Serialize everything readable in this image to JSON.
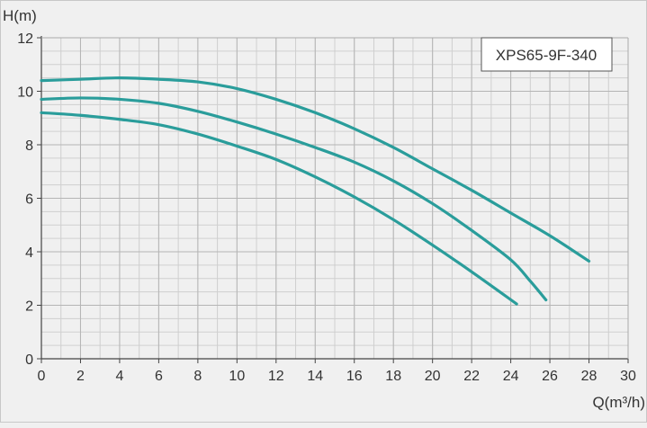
{
  "chart_data": {
    "type": "line",
    "title": "",
    "legend_box_label": "XPS65-9F-340",
    "legend_position": "top-right",
    "xlabel": "Q(m³/h)",
    "ylabel": "H(m)",
    "xlim": [
      0,
      30
    ],
    "ylim": [
      0,
      12
    ],
    "x_ticks": [
      0,
      2,
      4,
      6,
      8,
      10,
      12,
      14,
      16,
      18,
      20,
      22,
      24,
      26,
      28,
      30
    ],
    "y_ticks": [
      0,
      2,
      4,
      6,
      8,
      10,
      12
    ],
    "grid": true,
    "minor_grid_step": 1,
    "series": [
      {
        "color": "#2a9d9b",
        "points": [
          [
            0,
            10.4
          ],
          [
            2,
            10.45
          ],
          [
            4,
            10.5
          ],
          [
            6,
            10.45
          ],
          [
            8,
            10.35
          ],
          [
            10,
            10.1
          ],
          [
            12,
            9.7
          ],
          [
            14,
            9.2
          ],
          [
            16,
            8.6
          ],
          [
            18,
            7.9
          ],
          [
            20,
            7.1
          ],
          [
            22,
            6.3
          ],
          [
            24,
            5.45
          ],
          [
            26,
            4.6
          ],
          [
            28,
            3.65
          ]
        ]
      },
      {
        "color": "#2a9d9b",
        "points": [
          [
            0,
            9.7
          ],
          [
            2,
            9.75
          ],
          [
            4,
            9.7
          ],
          [
            6,
            9.55
          ],
          [
            8,
            9.25
          ],
          [
            10,
            8.85
          ],
          [
            12,
            8.4
          ],
          [
            14,
            7.9
          ],
          [
            16,
            7.35
          ],
          [
            18,
            6.65
          ],
          [
            20,
            5.8
          ],
          [
            22,
            4.8
          ],
          [
            24,
            3.7
          ],
          [
            25,
            2.9
          ],
          [
            25.8,
            2.2
          ]
        ]
      },
      {
        "color": "#2a9d9b",
        "points": [
          [
            0,
            9.2
          ],
          [
            2,
            9.1
          ],
          [
            4,
            8.95
          ],
          [
            6,
            8.75
          ],
          [
            8,
            8.4
          ],
          [
            10,
            7.95
          ],
          [
            12,
            7.45
          ],
          [
            14,
            6.8
          ],
          [
            16,
            6.05
          ],
          [
            18,
            5.2
          ],
          [
            20,
            4.25
          ],
          [
            22,
            3.25
          ],
          [
            24.3,
            2.05
          ]
        ]
      }
    ]
  }
}
